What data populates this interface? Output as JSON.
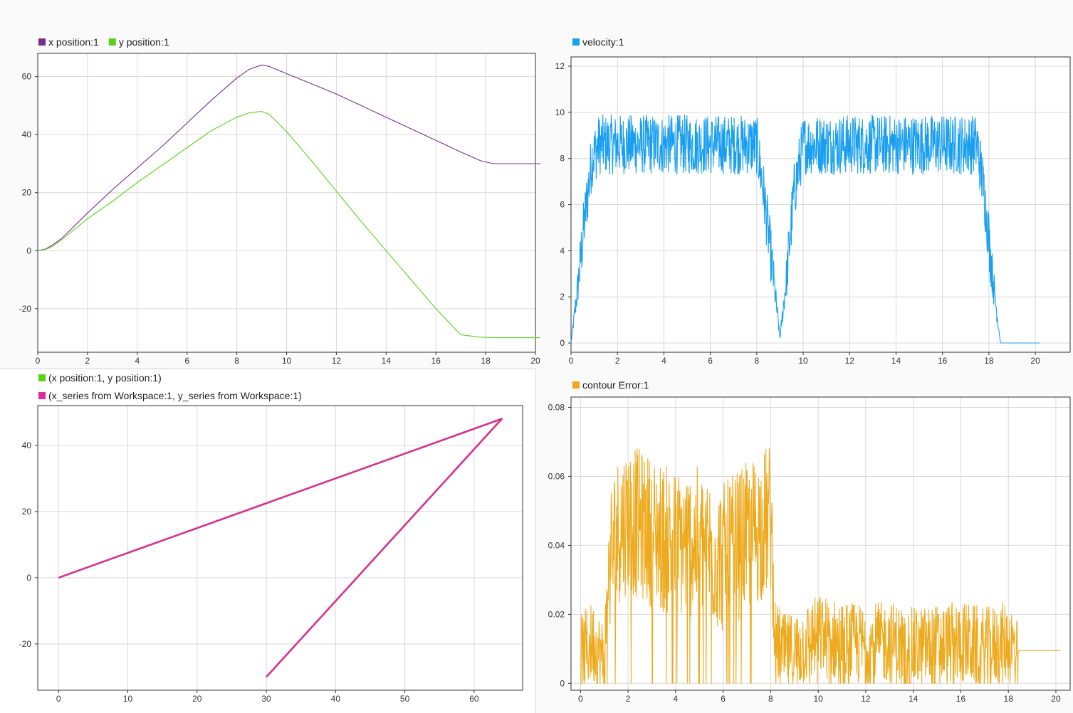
{
  "chart_data": [
    {
      "type": "line",
      "title": "",
      "xlim": [
        0,
        20
      ],
      "ylim": [
        -35,
        68
      ],
      "grid": true,
      "legend": "top-left",
      "x_ticks": [
        0,
        2,
        4,
        6,
        8,
        10,
        12,
        14,
        16,
        18,
        20
      ],
      "y_ticks": [
        -20,
        0,
        20,
        40,
        60
      ],
      "series": [
        {
          "name": "x position:1",
          "color": "#7b2d8e",
          "x": [
            0,
            0.3,
            0.6,
            1,
            2,
            3,
            4,
            5,
            6,
            7,
            8,
            8.5,
            9,
            9.3,
            10,
            11,
            12,
            13,
            14,
            15,
            16,
            17,
            17.8,
            18.3,
            20.2
          ],
          "y": [
            0,
            0.5,
            2,
            4.5,
            13,
            21,
            28.5,
            36,
            44,
            52,
            59.5,
            62.5,
            64,
            63.5,
            61,
            57.5,
            54,
            50,
            46,
            42,
            38,
            34,
            31,
            30,
            30
          ]
        },
        {
          "name": "y position:1",
          "color": "#5cd11a",
          "x": [
            0,
            0.3,
            0.6,
            1,
            2,
            3,
            4,
            5,
            6,
            7,
            8,
            8.5,
            9,
            9.3,
            10,
            11,
            12,
            13,
            14,
            15,
            16,
            17,
            17.8,
            18.3,
            20.2
          ],
          "y": [
            0,
            0.4,
            1.5,
            4,
            11,
            17,
            23.5,
            29.5,
            35.5,
            41.5,
            46,
            47.5,
            48,
            47,
            41,
            31,
            20.5,
            10,
            0,
            -10,
            -20,
            -29,
            -29.8,
            -30,
            -30
          ]
        }
      ]
    },
    {
      "type": "line",
      "title": "",
      "xlim": [
        0,
        21.5
      ],
      "ylim": [
        -0.4,
        12.4
      ],
      "grid": true,
      "legend": "top-left",
      "x_ticks": [
        0,
        2,
        4,
        6,
        8,
        10,
        12,
        14,
        16,
        18,
        20
      ],
      "y_ticks": [
        0,
        2,
        4,
        6,
        8,
        10,
        12
      ],
      "noise": 1.3,
      "series": [
        {
          "name": "velocity:1",
          "color": "#1a9ff0",
          "x": [
            0,
            0.3,
            0.6,
            0.9,
            1.2,
            8.0,
            8.3,
            8.7,
            9.0,
            9.3,
            9.6,
            10.0,
            17.5,
            17.8,
            18.2,
            18.5,
            20.2
          ],
          "y": [
            0,
            2.5,
            5.5,
            8.0,
            8.6,
            8.6,
            6.5,
            3.0,
            0.2,
            3.0,
            6.5,
            8.6,
            8.6,
            6.5,
            2.5,
            0,
            0
          ]
        }
      ]
    },
    {
      "type": "line",
      "title": "",
      "xlim": [
        -3,
        67
      ],
      "ylim": [
        -34,
        52
      ],
      "grid": true,
      "legend": "top-left",
      "x_ticks": [
        0,
        10,
        20,
        30,
        40,
        50,
        60
      ],
      "y_ticks": [
        -20,
        0,
        20,
        40
      ],
      "series": [
        {
          "name": "(x position:1, y position:1)",
          "color": "#5cd11a",
          "x": [
            0,
            64,
            30
          ],
          "y": [
            0,
            48,
            -30
          ]
        },
        {
          "name": "(x_series from Workspace:1, y_series from Workspace:1)",
          "color": "#e02a9a",
          "x": [
            0,
            64,
            30
          ],
          "y": [
            0,
            48,
            -30
          ]
        }
      ]
    },
    {
      "type": "line",
      "title": "",
      "xlim": [
        -0.4,
        20.6
      ],
      "ylim": [
        -0.002,
        0.083
      ],
      "grid": true,
      "legend": "top-left",
      "x_ticks": [
        0,
        2,
        4,
        6,
        8,
        10,
        12,
        14,
        16,
        18,
        20
      ],
      "y_ticks": [
        0,
        0.02,
        0.04,
        0.06,
        0.08
      ],
      "series": [
        {
          "name": "contour Error:1",
          "color": "#edaa1e",
          "x": [
            0,
            0.5,
            1.0,
            1.2,
            1.6,
            2,
            3,
            4,
            5,
            6,
            7,
            8.0,
            8.2,
            8.6,
            9,
            10,
            11,
            12,
            13,
            14,
            15,
            16,
            17,
            18,
            18.4,
            18.45,
            20.2
          ],
          "y": [
            0.008,
            0.012,
            0.006,
            0.035,
            0.045,
            0.048,
            0.044,
            0.04,
            0.041,
            0.036,
            0.042,
            0.048,
            0.012,
            0.008,
            0.009,
            0.014,
            0.012,
            0.011,
            0.012,
            0.01,
            0.011,
            0.012,
            0.01,
            0.012,
            0.009,
            0.0095,
            0.0095
          ]
        }
      ]
    }
  ]
}
